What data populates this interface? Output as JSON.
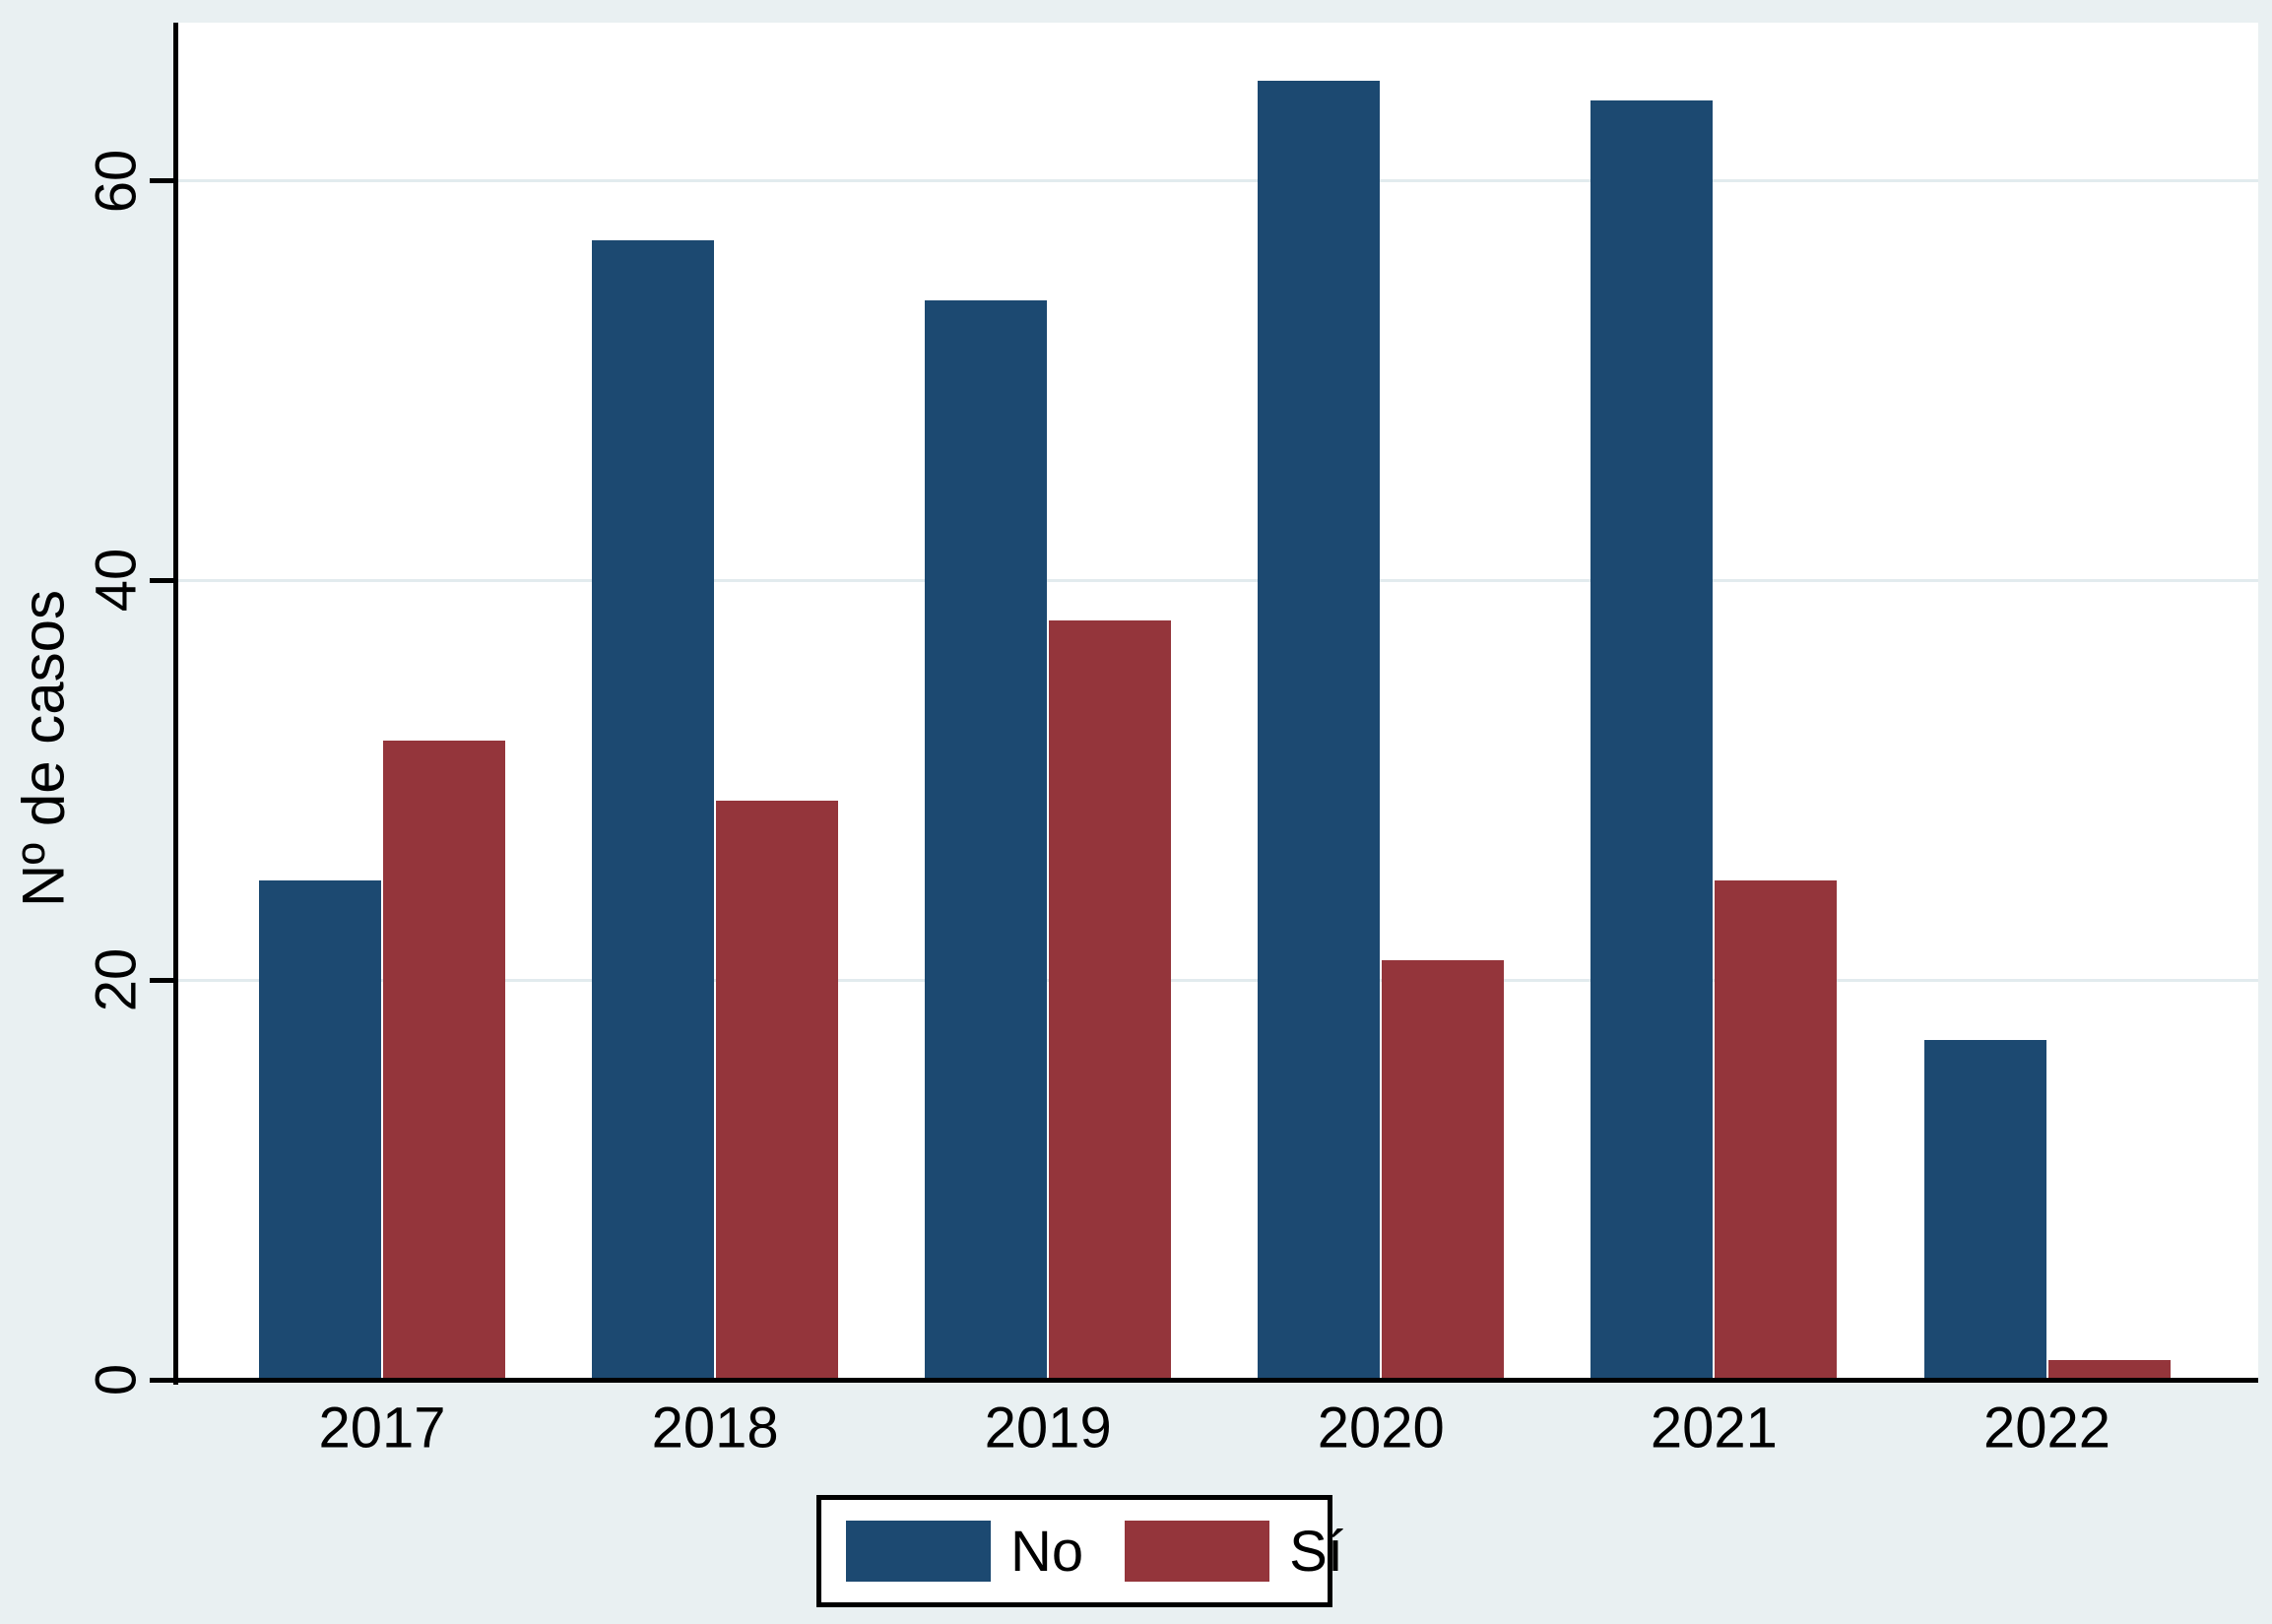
{
  "figure": {
    "background_color": "#e9f0f2",
    "plot_background_color": "#ffffff",
    "grid_color": "#e2ebee",
    "axis_color": "#000000"
  },
  "chart_data": {
    "type": "bar",
    "categories": [
      "2017",
      "2018",
      "2019",
      "2020",
      "2021",
      "2022"
    ],
    "series": [
      {
        "name": "No",
        "color": "#1c4971",
        "values": [
          25,
          57,
          54,
          65,
          64,
          17
        ]
      },
      {
        "name": "Sí",
        "color": "#94353b",
        "values": [
          32,
          29,
          38,
          21,
          25,
          1
        ]
      }
    ],
    "title": "",
    "xlabel": "",
    "ylabel": "Nº de casos",
    "yticks": [
      0,
      20,
      40,
      60
    ],
    "ylim": [
      0,
      68
    ],
    "grid": true,
    "legend_position": "bottom-center"
  }
}
